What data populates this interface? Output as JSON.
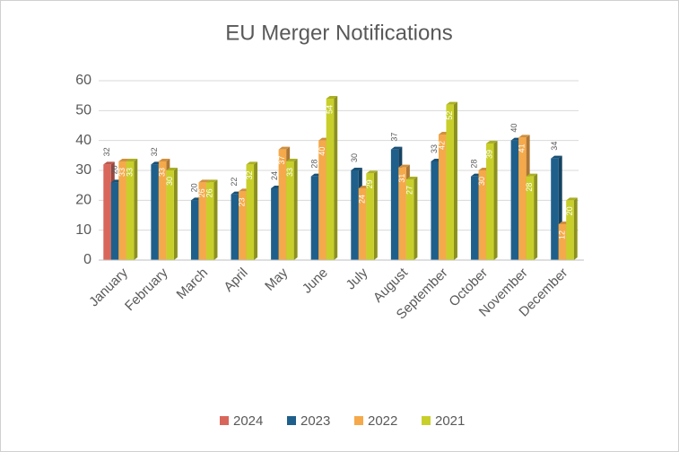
{
  "chart_data": {
    "type": "bar",
    "title": "EU Merger Notifications",
    "categories": [
      "January",
      "February",
      "March",
      "April",
      "May",
      "June",
      "July",
      "August",
      "September",
      "October",
      "November",
      "December"
    ],
    "series": [
      {
        "name": "2024",
        "color": "#d9665a",
        "values": [
          32,
          null,
          null,
          null,
          null,
          null,
          null,
          null,
          null,
          null,
          null,
          null
        ]
      },
      {
        "name": "2023",
        "color": "#1f5f8b",
        "values": [
          26,
          32,
          20,
          22,
          24,
          28,
          30,
          37,
          33,
          28,
          40,
          34
        ]
      },
      {
        "name": "2022",
        "color": "#f5a94a",
        "values": [
          33,
          33,
          26,
          23,
          37,
          40,
          24,
          31,
          42,
          30,
          41,
          12
        ]
      },
      {
        "name": "2021",
        "color": "#c8cf2a",
        "values": [
          33,
          30,
          26,
          32,
          33,
          54,
          29,
          27,
          52,
          39,
          28,
          20
        ]
      }
    ],
    "ylim": [
      0,
      60
    ],
    "yticks": [
      0,
      10,
      20,
      30,
      40,
      50,
      60
    ],
    "grid": true,
    "legend": "bottom"
  }
}
